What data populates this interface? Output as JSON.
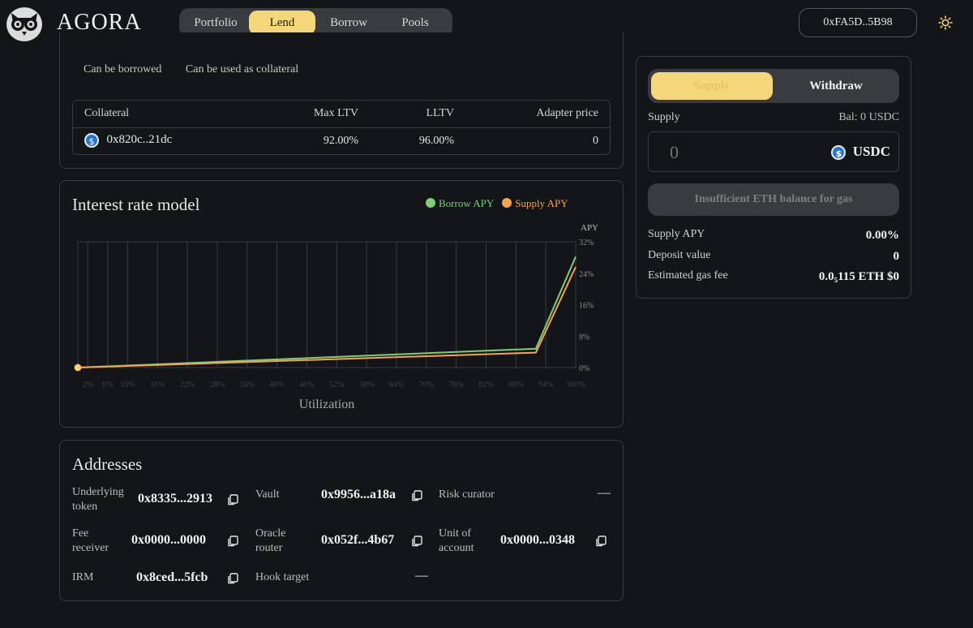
{
  "header": {
    "brand": "AGORA",
    "nav": [
      "Portfolio",
      "Lend",
      "Borrow",
      "Pools"
    ],
    "active_nav": "Lend",
    "wallet": "0xFA5D..5B98"
  },
  "market": {
    "tags": [
      "Can be borrowed",
      "Can be used as collateral"
    ],
    "collateral_table": {
      "headers": [
        "Collateral",
        "Max LTV",
        "LLTV",
        "Adapter price"
      ],
      "rows": [
        {
          "asset": "0x820c..21dc",
          "max_ltv": "92.00%",
          "lltv": "96.00%",
          "adapter_price": "0"
        }
      ]
    }
  },
  "irm": {
    "title": "Interest rate model",
    "legend": {
      "borrow": "Borrow APY",
      "supply": "Supply APY"
    },
    "colors": {
      "borrow": "#7fcc79",
      "supply": "#f2a455"
    }
  },
  "chart_data": {
    "type": "line",
    "title": "Interest rate model",
    "xlabel": "Utilization",
    "ylabel": "APY",
    "x_ticks": [
      "2%",
      "6%",
      "10%",
      "16%",
      "22%",
      "28%",
      "34%",
      "40%",
      "46%",
      "52%",
      "58%",
      "64%",
      "70%",
      "76%",
      "82%",
      "88%",
      "94%",
      "100%"
    ],
    "y_ticks": [
      "0%",
      "8%",
      "16%",
      "24%",
      "32%"
    ],
    "xlim": [
      0,
      100
    ],
    "ylim": [
      0,
      32
    ],
    "series": [
      {
        "name": "Borrow APY",
        "x": [
          0,
          92,
          100
        ],
        "y": [
          0,
          4.8,
          28.2
        ]
      },
      {
        "name": "Supply APY",
        "x": [
          0,
          92,
          100
        ],
        "y": [
          0,
          3.8,
          25.6
        ]
      }
    ]
  },
  "addresses": {
    "title": "Addresses",
    "items": [
      {
        "label": "Underlying token",
        "value": "0x8335...2913",
        "copy": true
      },
      {
        "label": "Vault",
        "value": "0x9956...a18a",
        "copy": true
      },
      {
        "label": "Risk curator",
        "value": "—",
        "copy": false
      },
      {
        "label": "Fee receiver",
        "value": "0x0000...0000",
        "copy": true
      },
      {
        "label": "Oracle router",
        "value": "0x052f...4b67",
        "copy": true
      },
      {
        "label": "Unit of account",
        "value": "0x0000...0348",
        "copy": true
      },
      {
        "label": "IRM",
        "value": "0x8ced...5fcb",
        "copy": true
      },
      {
        "label": "Hook target",
        "value": "—",
        "copy": false
      }
    ]
  },
  "panel": {
    "tabs": [
      "Supply",
      "Withdraw"
    ],
    "supply_label": "Supply",
    "balance": "Bal: 0 USDC",
    "amount_placeholder": "0",
    "token": "USDC",
    "action_button": "Insufficient ETH balance for gas",
    "stats": [
      {
        "label": "Supply APY",
        "value": "0.00%"
      },
      {
        "label": "Deposit value",
        "value": "0"
      },
      {
        "label": "Estimated gas fee",
        "value": "0.0₅115 ETH $0"
      }
    ]
  }
}
